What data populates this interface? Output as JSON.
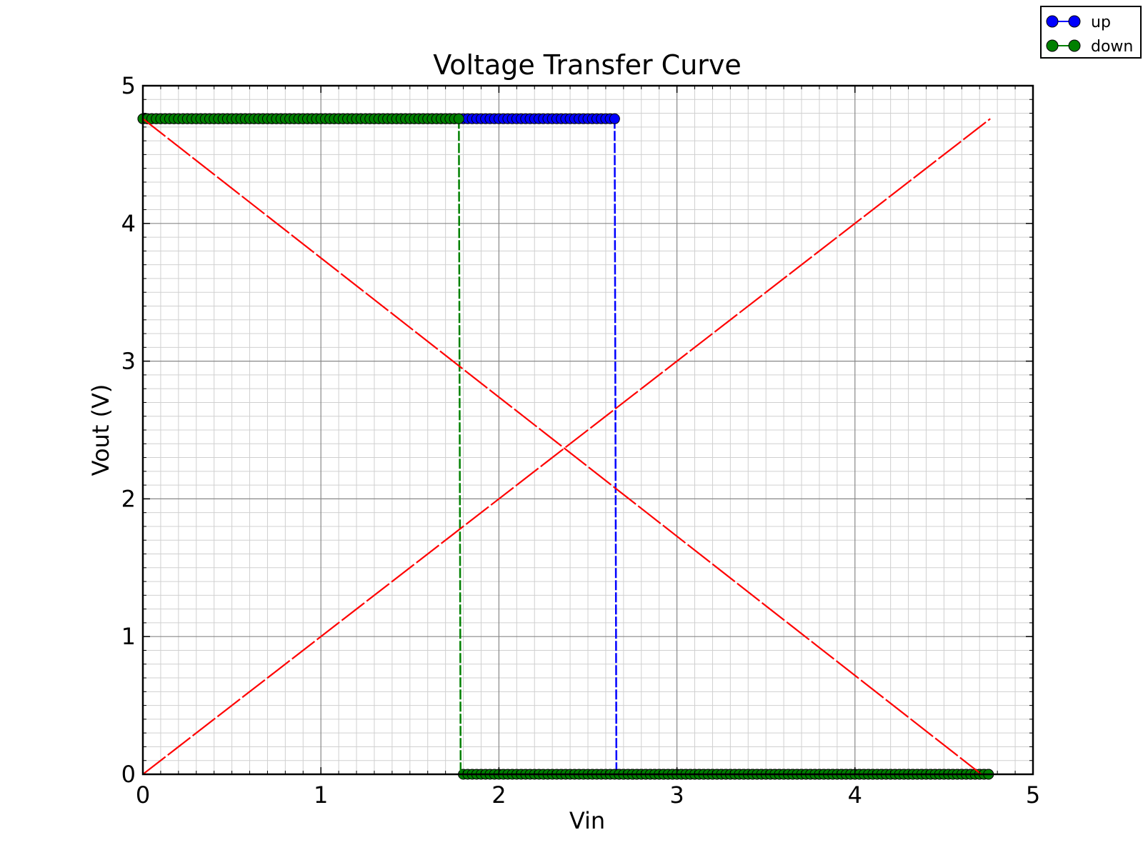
{
  "chart_data": {
    "type": "line",
    "title": "Voltage Transfer Curve",
    "xlabel": "Vin",
    "ylabel": "Vout (V)",
    "xlim": [
      0,
      5
    ],
    "ylim": [
      0,
      5
    ],
    "xticks": [
      "0",
      "1",
      "2",
      "3",
      "4",
      "5"
    ],
    "yticks": [
      "0",
      "1",
      "2",
      "3",
      "4",
      "5"
    ],
    "grid": true,
    "minor_grid": true,
    "legend_position": "top-right outside",
    "series": [
      {
        "name": "up",
        "color": "#0000ff",
        "marker": "circle",
        "high": 4.76,
        "low": 0.0,
        "x_start": 0.0,
        "x_step": 0.025,
        "x_switch": 2.65,
        "x_end": 4.76
      },
      {
        "name": "down",
        "color": "#008000",
        "marker": "circle",
        "high": 4.76,
        "low": 0.0,
        "x_start": 0.0,
        "x_step": 0.025,
        "x_switch": 1.78,
        "x_end": 4.76
      }
    ],
    "reference_lines": [
      {
        "color": "#ff0000",
        "style": "dashed",
        "points": [
          [
            0,
            0
          ],
          [
            4.76,
            4.76
          ]
        ]
      },
      {
        "color": "#ff0000",
        "style": "dashed",
        "points": [
          [
            0,
            4.76
          ],
          [
            4.71,
            0
          ]
        ]
      }
    ]
  }
}
